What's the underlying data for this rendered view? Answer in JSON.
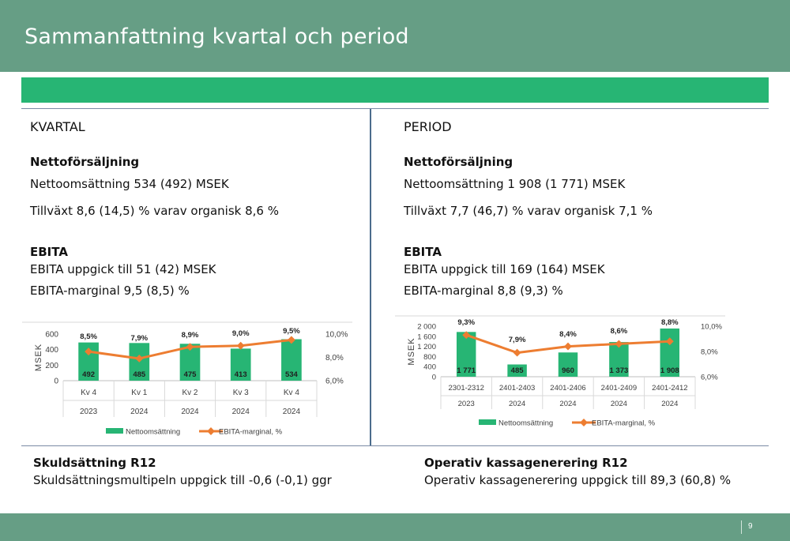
{
  "slide": {
    "title": "Sammanfattning kvartal och period",
    "page_number": "9"
  },
  "quarter": {
    "heading": "KVARTAL",
    "sales_heading": "Nettoförsäljning",
    "sales_line1": "Nettoomsättning 534 (492) MSEK",
    "sales_line2": "Tillväxt 8,6 (14,5) % varav organisk 8,6 %",
    "ebita_heading": "EBITA",
    "ebita_line1": "EBITA uppgick till 51 (42) MSEK",
    "ebita_line2": "EBITA-marginal 9,5 (8,5) %"
  },
  "period": {
    "heading": "PERIOD",
    "sales_heading": "Nettoförsäljning",
    "sales_line1": "Nettoomsättning 1 908 (1 771) MSEK",
    "sales_line2": "Tillväxt 7,7 (46,7) % varav organisk 7,1 %",
    "ebita_heading": "EBITA",
    "ebita_line1": "EBITA uppgick till 169 (164) MSEK",
    "ebita_line2": "EBITA-marginal 8,8 (9,3) %"
  },
  "bottom": {
    "left_heading": "Skuldsättning R12",
    "left_text": "Skuldsättningsmultipeln uppgick till -0,6 (-0,1) ggr",
    "right_heading": "Operativ kassagenerering R12",
    "right_text": "Operativ kassagenerering uppgick till 89,3 (60,8) %"
  },
  "colors": {
    "header": "#669e85",
    "band": "#27b574",
    "bar": "#27b574",
    "line": "#ed7d31"
  },
  "chart_data": [
    {
      "type": "bar",
      "categories": [
        "Kv 4",
        "Kv 1",
        "Kv 2",
        "Kv 3",
        "Kv 4"
      ],
      "years": [
        "2023",
        "2024",
        "2024",
        "2024",
        "2024"
      ],
      "ylabel": "MSEK",
      "ylim": [
        0,
        600
      ],
      "yticks": [
        "0",
        "200",
        "400",
        "600"
      ],
      "y2lim": [
        6.0,
        10.0
      ],
      "y2ticks": [
        "6,0%",
        "8,0%",
        "10,0%"
      ],
      "series": [
        {
          "name": "Nettoomsättning",
          "type": "bar",
          "values": [
            492,
            485,
            475,
            413,
            534
          ],
          "labels": [
            "492",
            "485",
            "475",
            "413",
            "534"
          ]
        },
        {
          "name": "EBITA-marginal, %",
          "type": "line",
          "values": [
            8.5,
            7.9,
            8.9,
            9.0,
            9.5
          ],
          "labels": [
            "8,5%",
            "7,9%",
            "8,9%",
            "9,0%",
            "9,5%"
          ]
        }
      ],
      "legend": "bottom"
    },
    {
      "type": "bar",
      "categories": [
        "2301-2312",
        "2401-2403",
        "2401-2406",
        "2401-2409",
        "2401-2412"
      ],
      "years": [
        "2023",
        "2024",
        "2024",
        "2024",
        "2024"
      ],
      "ylabel": "MSEK",
      "ylim": [
        0,
        2000
      ],
      "yticks": [
        "0",
        "400",
        "800",
        "1 200",
        "1 600",
        "2 000"
      ],
      "y2lim": [
        6.0,
        10.0
      ],
      "y2ticks": [
        "6,0%",
        "8,0%",
        "10,0%"
      ],
      "series": [
        {
          "name": "Nettoomsättning",
          "type": "bar",
          "values": [
            1771,
            485,
            960,
            1373,
            1908
          ],
          "labels": [
            "1 771",
            "485",
            "960",
            "1 373",
            "1 908"
          ]
        },
        {
          "name": "EBITA-marginal, %",
          "type": "line",
          "values": [
            9.3,
            7.9,
            8.4,
            8.6,
            8.8
          ],
          "labels": [
            "9,3%",
            "7,9%",
            "8,4%",
            "8,6%",
            "8,8%"
          ]
        }
      ],
      "legend": "bottom"
    }
  ]
}
